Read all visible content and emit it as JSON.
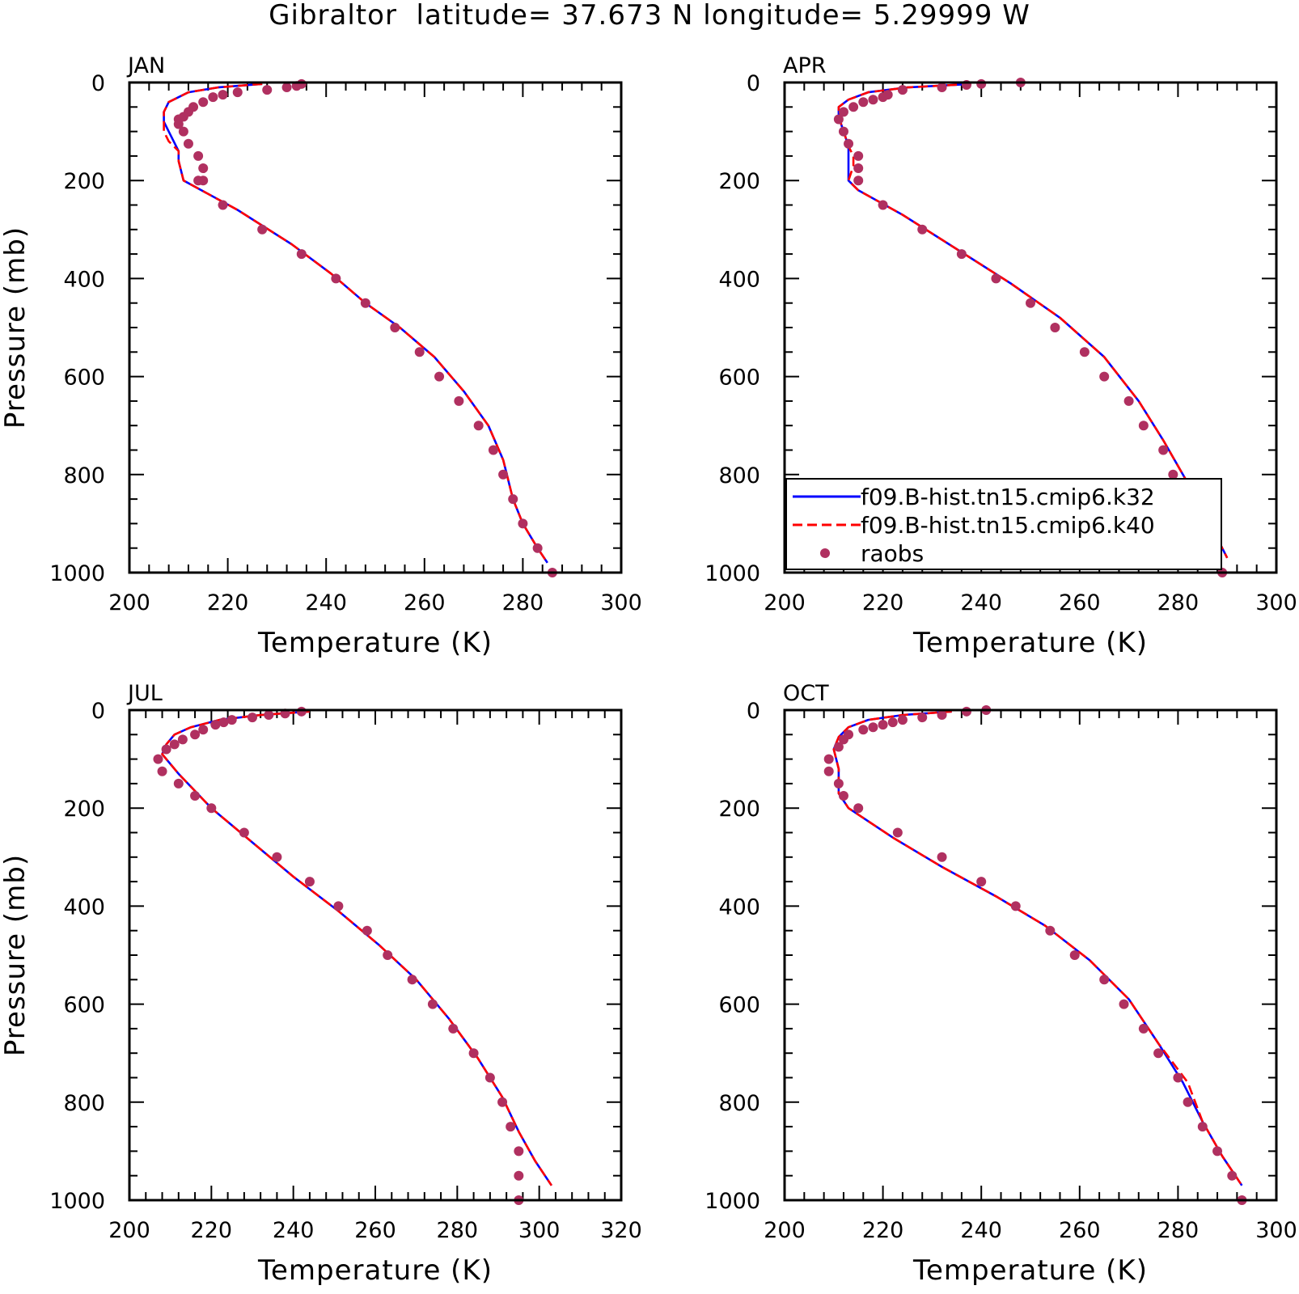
{
  "figure": {
    "suptitle": "Gibraltor  latitude= 37.673 N longitude= 5.29999 W"
  },
  "colors": {
    "k32": "#0000ff",
    "k40": "#ff0000",
    "raobs": "#b03060",
    "axis": "#000000"
  },
  "legend": {
    "items": [
      {
        "label": "f09.B-hist.tn15.cmip6.k32",
        "style": "solid",
        "color": "#0000ff"
      },
      {
        "label": "f09.B-hist.tn15.cmip6.k40",
        "style": "dashed",
        "color": "#ff0000"
      },
      {
        "label": "raobs",
        "style": "marker",
        "color": "#b03060"
      }
    ]
  },
  "chart_data": [
    {
      "type": "line",
      "panel": "JAN",
      "xlabel": "Temperature (K)",
      "ylabel": "Pressure (mb)",
      "xlim": [
        200,
        300
      ],
      "ylim": [
        1000,
        0
      ],
      "xticks": [
        "200",
        "220",
        "240",
        "260",
        "280",
        "300"
      ],
      "yticks": [
        "0",
        "200",
        "400",
        "600",
        "800",
        "1000"
      ],
      "series": [
        {
          "name": "f09.B-hist.tn15.cmip6.k32",
          "x": [
            227,
            218,
            212,
            208,
            207,
            207,
            208,
            209,
            210,
            210,
            211,
            222,
            233,
            241,
            248,
            255,
            262,
            268,
            273,
            276,
            278,
            280,
            283,
            285
          ],
          "y": [
            3,
            10,
            20,
            40,
            60,
            80,
            100,
            120,
            140,
            160,
            200,
            260,
            330,
            390,
            450,
            500,
            560,
            630,
            700,
            770,
            850,
            900,
            950,
            980
          ]
        },
        {
          "name": "f09.B-hist.tn15.cmip6.k40",
          "x": [
            227,
            218,
            212,
            208,
            207,
            207,
            207,
            208,
            210,
            210,
            211,
            222,
            233,
            241,
            248,
            255,
            262,
            268,
            273,
            276,
            278,
            280,
            283,
            285
          ],
          "y": [
            3,
            10,
            20,
            40,
            60,
            80,
            100,
            120,
            140,
            160,
            200,
            260,
            330,
            390,
            450,
            500,
            560,
            630,
            700,
            770,
            850,
            900,
            950,
            980
          ]
        },
        {
          "name": "raobs",
          "x": [
            235,
            234,
            232,
            228,
            222,
            219,
            217,
            215,
            213,
            212,
            211,
            210,
            210,
            211,
            212,
            214,
            215,
            215,
            214,
            219,
            227,
            235,
            242,
            248,
            254,
            259,
            263,
            267,
            271,
            274,
            276,
            278,
            280,
            283,
            286
          ],
          "y": [
            3,
            7,
            10,
            15,
            20,
            25,
            30,
            40,
            50,
            60,
            70,
            75,
            85,
            100,
            125,
            150,
            175,
            200,
            200,
            250,
            300,
            350,
            400,
            450,
            500,
            550,
            600,
            650,
            700,
            750,
            800,
            850,
            900,
            950,
            1000
          ]
        }
      ]
    },
    {
      "type": "line",
      "panel": "APR",
      "xlabel": "Temperature (K)",
      "ylabel": "",
      "xlim": [
        200,
        300
      ],
      "ylim": [
        1000,
        0
      ],
      "xticks": [
        "200",
        "220",
        "240",
        "260",
        "280",
        "300"
      ],
      "yticks": [
        "0",
        "200",
        "400",
        "600",
        "800",
        "1000"
      ],
      "series": [
        {
          "name": "f09.B-hist.tn15.cmip6.k32",
          "x": [
            238,
            225,
            217,
            213,
            211,
            211,
            212,
            213,
            213,
            213,
            213,
            215,
            224,
            235,
            246,
            256,
            265,
            272,
            277,
            281,
            285,
            288,
            290
          ],
          "y": [
            3,
            10,
            20,
            35,
            50,
            70,
            100,
            130,
            150,
            170,
            200,
            220,
            270,
            340,
            410,
            480,
            560,
            650,
            730,
            800,
            870,
            930,
            970
          ]
        },
        {
          "name": "f09.B-hist.tn15.cmip6.k40",
          "x": [
            238,
            225,
            217,
            213,
            211,
            211,
            212,
            213,
            214,
            214,
            213,
            215,
            224,
            235,
            246,
            256,
            265,
            272,
            277,
            281,
            285,
            288,
            290
          ],
          "y": [
            3,
            10,
            20,
            35,
            50,
            70,
            100,
            130,
            150,
            170,
            200,
            220,
            270,
            340,
            410,
            480,
            560,
            650,
            730,
            800,
            870,
            930,
            970
          ]
        },
        {
          "name": "raobs",
          "x": [
            248,
            240,
            237,
            232,
            224,
            221,
            220,
            218,
            216,
            214,
            212,
            211,
            212,
            213,
            215,
            215,
            215,
            220,
            228,
            236,
            243,
            250,
            255,
            261,
            265,
            270,
            273,
            277,
            279,
            281,
            284,
            287,
            289
          ],
          "y": [
            0,
            3,
            5,
            10,
            15,
            25,
            30,
            35,
            40,
            50,
            60,
            75,
            100,
            125,
            150,
            175,
            200,
            250,
            300,
            350,
            400,
            450,
            500,
            550,
            600,
            650,
            700,
            750,
            800,
            850,
            900,
            950,
            1000
          ]
        }
      ]
    },
    {
      "type": "line",
      "panel": "JUL",
      "xlabel": "Temperature (K)",
      "ylabel": "Pressure (mb)",
      "xlim": [
        200,
        320
      ],
      "ylim": [
        1000,
        0
      ],
      "xticks": [
        "200",
        "220",
        "240",
        "260",
        "280",
        "300",
        "320"
      ],
      "yticks": [
        "0",
        "200",
        "400",
        "600",
        "800",
        "1000"
      ],
      "series": [
        {
          "name": "f09.B-hist.tn15.cmip6.k32",
          "x": [
            244,
            232,
            222,
            215,
            211,
            209,
            208,
            212,
            220,
            230,
            240,
            251,
            261,
            270,
            278,
            285,
            291,
            295,
            299,
            303
          ],
          "y": [
            3,
            10,
            20,
            35,
            50,
            70,
            90,
            130,
            200,
            270,
            340,
            410,
            480,
            550,
            630,
            710,
            790,
            860,
            920,
            970
          ]
        },
        {
          "name": "f09.B-hist.tn15.cmip6.k40",
          "x": [
            244,
            232,
            222,
            215,
            211,
            209,
            208,
            212,
            220,
            230,
            240,
            251,
            261,
            270,
            278,
            285,
            291,
            295,
            299,
            303
          ],
          "y": [
            3,
            10,
            20,
            35,
            50,
            70,
            90,
            130,
            200,
            270,
            340,
            410,
            480,
            550,
            630,
            710,
            790,
            860,
            920,
            970
          ]
        },
        {
          "name": "raobs",
          "x": [
            242,
            238,
            234,
            230,
            225,
            223,
            221,
            218,
            216,
            213,
            211,
            209,
            207,
            208,
            212,
            216,
            220,
            228,
            236,
            244,
            251,
            258,
            263,
            269,
            274,
            279,
            284,
            288,
            291,
            293,
            295,
            295,
            295
          ],
          "y": [
            3,
            7,
            10,
            15,
            20,
            25,
            30,
            40,
            50,
            60,
            70,
            80,
            100,
            125,
            150,
            175,
            200,
            250,
            300,
            350,
            400,
            450,
            500,
            550,
            600,
            650,
            700,
            750,
            800,
            850,
            900,
            950,
            1000
          ]
        }
      ]
    },
    {
      "type": "line",
      "panel": "OCT",
      "xlabel": "Temperature (K)",
      "ylabel": "",
      "xlim": [
        200,
        300
      ],
      "ylim": [
        1000,
        0
      ],
      "xticks": [
        "200",
        "220",
        "240",
        "260",
        "280",
        "300"
      ],
      "yticks": [
        "0",
        "200",
        "400",
        "600",
        "800",
        "1000"
      ],
      "series": [
        {
          "name": "f09.B-hist.tn15.cmip6.k32",
          "x": [
            234,
            224,
            217,
            213,
            211,
            210,
            211,
            211,
            213,
            222,
            232,
            243,
            253,
            262,
            270,
            276,
            281,
            285,
            289,
            293
          ],
          "y": [
            3,
            10,
            20,
            35,
            55,
            80,
            120,
            170,
            200,
            260,
            320,
            380,
            440,
            510,
            590,
            680,
            760,
            840,
            910,
            970
          ]
        },
        {
          "name": "f09.B-hist.tn15.cmip6.k40",
          "x": [
            234,
            224,
            217,
            213,
            211,
            210,
            211,
            211,
            213,
            222,
            232,
            243,
            253,
            262,
            270,
            276,
            282,
            285,
            289,
            293
          ],
          "y": [
            3,
            10,
            20,
            35,
            55,
            80,
            120,
            170,
            200,
            260,
            320,
            380,
            440,
            510,
            590,
            680,
            760,
            840,
            910,
            970
          ]
        },
        {
          "name": "raobs",
          "x": [
            241,
            237,
            232,
            228,
            224,
            222,
            220,
            218,
            216,
            213,
            212,
            211,
            209,
            209,
            211,
            212,
            215,
            223,
            232,
            240,
            247,
            254,
            259,
            265,
            269,
            273,
            276,
            280,
            282,
            285,
            288,
            291,
            293
          ],
          "y": [
            0,
            3,
            10,
            15,
            20,
            25,
            30,
            35,
            40,
            50,
            60,
            75,
            100,
            125,
            150,
            175,
            200,
            250,
            300,
            350,
            400,
            450,
            500,
            550,
            600,
            650,
            700,
            750,
            800,
            850,
            900,
            950,
            1000
          ]
        }
      ]
    }
  ]
}
